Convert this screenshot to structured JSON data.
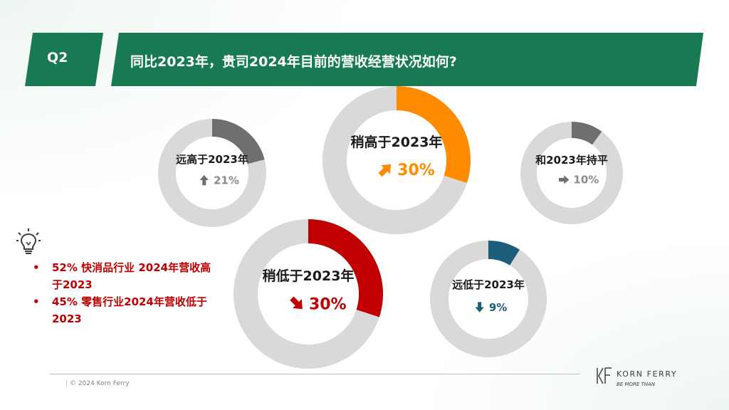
{
  "colors": {
    "header_green": "#187a52",
    "ring_gray": "#d9d9d9",
    "dark_gray": "#6f6f6f",
    "orange": "#ff8c00",
    "red": "#c00000",
    "teal": "#1b5d7a",
    "insight_red": "#c00000"
  },
  "header": {
    "question": "Q2",
    "title": "同比2023年，贵司2024年目前的营收经营状况如何?"
  },
  "chart_data": {
    "type": "pie",
    "series": [
      {
        "label": "远高于2023年",
        "value": 21,
        "value_text": "21%",
        "trend": "up",
        "color": "#6f6f6f"
      },
      {
        "label": "稍高于2023年",
        "value": 30,
        "value_text": "30%",
        "trend": "up-right",
        "color": "#ff8c00"
      },
      {
        "label": "和2023年持平",
        "value": 10,
        "value_text": "10%",
        "trend": "right",
        "color": "#6f6f6f"
      },
      {
        "label": "稍低于2023年",
        "value": 30,
        "value_text": "30%",
        "trend": "down-right",
        "color": "#c00000"
      },
      {
        "label": "远低于2023年",
        "value": 9,
        "value_text": "9%",
        "trend": "down",
        "color": "#1b5d7a"
      }
    ]
  },
  "insights": [
    "52% 快消品行业 2024年营收高于2023",
    "45% 零售行业2024年营收低于2023"
  ],
  "icons": {
    "tip": "lightbulb-icon"
  },
  "footer": {
    "copyright": "© 2024 Korn Ferry",
    "logo_name": "KORN FERRY",
    "logo_tagline": "BE MORE THAN"
  }
}
